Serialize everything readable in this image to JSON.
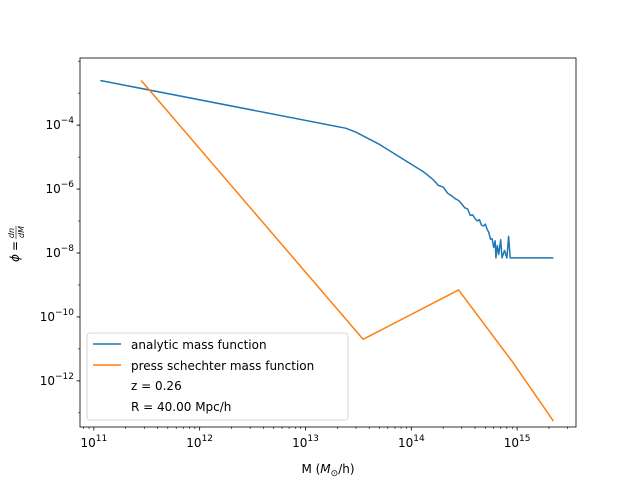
{
  "chart_data": {
    "type": "line",
    "title": "",
    "xlabel": "M ($M_\\odot$/h)",
    "ylabel": "$\\phi = \\frac{dn}{dM}$",
    "xscale": "log",
    "yscale": "log",
    "xlim": [
      74000000000.0,
      3600000000000000.0
    ],
    "ylim": [
      3.6e-14,
      0.0126
    ],
    "grid": false,
    "legend_position": "lower-left",
    "x_ticks": [
      {
        "value": 100000000000.0,
        "base": "10",
        "exp": "11"
      },
      {
        "value": 1000000000000.0,
        "base": "10",
        "exp": "12"
      },
      {
        "value": 10000000000000.0,
        "base": "10",
        "exp": "13"
      },
      {
        "value": 100000000000000.0,
        "base": "10",
        "exp": "14"
      },
      {
        "value": 1000000000000000.0,
        "base": "10",
        "exp": "15"
      }
    ],
    "y_ticks": [
      {
        "value": 1e-12,
        "base": "10",
        "exp": "−12"
      },
      {
        "value": 1e-10,
        "base": "10",
        "exp": "−10"
      },
      {
        "value": 1e-08,
        "base": "10",
        "exp": "−8"
      },
      {
        "value": 1e-06,
        "base": "10",
        "exp": "−6"
      },
      {
        "value": 0.0001,
        "base": "10",
        "exp": "−4"
      }
    ],
    "series": [
      {
        "name": "analytic mass function",
        "color": "#1f77b4",
        "points": [
          [
            115000000000.0,
            0.0025
          ],
          [
            24000000000000.0,
            8e-05
          ],
          [
            30000000000000.0,
            6e-05
          ],
          [
            50000000000000.0,
            2.5e-05
          ],
          [
            100000000000000.0,
            6e-06
          ],
          [
            130000000000000.0,
            3.5e-06
          ],
          [
            160000000000000.0,
            2e-06
          ],
          [
            180000000000000.0,
            1.3e-06
          ],
          [
            200000000000000.0,
            1.15e-06
          ],
          [
            220000000000000.0,
            7.5e-07
          ],
          [
            240000000000000.0,
            6.2e-07
          ],
          [
            260000000000000.0,
            5e-07
          ],
          [
            280000000000000.0,
            4.4e-07
          ],
          [
            300000000000000.0,
            3.4e-07
          ],
          [
            320000000000000.0,
            2.6e-07
          ],
          [
            340000000000000.0,
            2.4e-07
          ],
          [
            360000000000000.0,
            1.5e-07
          ],
          [
            380000000000000.0,
            1.55e-07
          ],
          [
            400000000000000.0,
            1.2e-07
          ],
          [
            420000000000000.0,
            1e-07
          ],
          [
            440000000000000.0,
            1.1e-07
          ],
          [
            460000000000000.0,
            7.5e-08
          ],
          [
            480000000000000.0,
            7e-08
          ],
          [
            500000000000000.0,
            8e-08
          ],
          [
            520000000000000.0,
            5.5e-08
          ],
          [
            540000000000000.0,
            4.4e-08
          ],
          [
            560000000000000.0,
            2.7e-08
          ],
          [
            580000000000000.0,
            2.8e-08
          ],
          [
            600000000000000.0,
            1.5e-08
          ],
          [
            620000000000000.0,
            2.4e-08
          ],
          [
            630000000000000.0,
            7e-09
          ],
          [
            650000000000000.0,
            1.7e-08
          ],
          [
            670000000000000.0,
            9e-09
          ],
          [
            700000000000000.0,
            2.6e-08
          ],
          [
            720000000000000.0,
            7e-09
          ],
          [
            760000000000000.0,
            1.2e-08
          ],
          [
            800000000000000.0,
            7e-09
          ],
          [
            830000000000000.0,
            3.3e-08
          ],
          [
            860000000000000.0,
            7e-09
          ],
          [
            920000000000000.0,
            7e-09
          ],
          [
            2200000000000000.0,
            7e-09
          ]
        ]
      },
      {
        "name": "press schechter mass function",
        "color": "#ff7f0e",
        "points": [
          [
            280000000000.0,
            0.0025
          ],
          [
            35000000000000.0,
            2e-11
          ],
          [
            280000000000000.0,
            7e-10
          ],
          [
            900000000000000.0,
            4e-12
          ],
          [
            2200000000000000.0,
            5.5e-14
          ]
        ]
      }
    ],
    "legend_extra": [
      "z = 0.26",
      "R = 40.00 Mpc/h"
    ]
  }
}
